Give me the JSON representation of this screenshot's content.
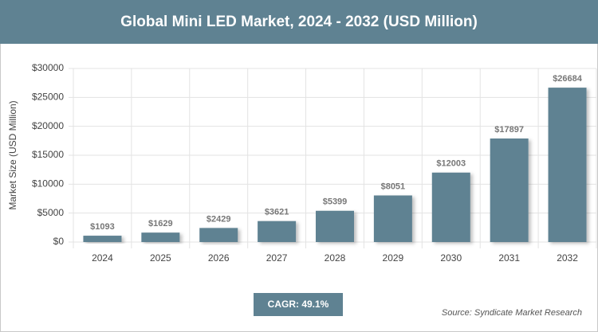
{
  "chart_data": {
    "type": "bar",
    "title": "Global Mini LED Market, 2024 - 2032 (USD Million)",
    "y_label": "Market Size (USD Million)",
    "categories": [
      "2024",
      "2025",
      "2026",
      "2027",
      "2028",
      "2029",
      "2030",
      "2031",
      "2032"
    ],
    "values": [
      1093,
      1629,
      2429,
      3621,
      5399,
      8051,
      12003,
      17897,
      26684
    ],
    "value_labels": [
      "$1093",
      "$1629",
      "$2429",
      "$3621",
      "$5399",
      "$8051",
      "$12003",
      "$17897",
      "$26684"
    ],
    "color": "#5f8292",
    "ylim": [
      0,
      30000
    ],
    "yticks": [
      {
        "value": 0,
        "label": "$0"
      },
      {
        "value": 5000,
        "label": "$5000"
      },
      {
        "value": 10000,
        "label": "$10000"
      },
      {
        "value": 15000,
        "label": "$15000"
      },
      {
        "value": 20000,
        "label": "$20000"
      },
      {
        "value": 25000,
        "label": "$25000"
      },
      {
        "value": 30000,
        "label": "$30000"
      }
    ],
    "grid": true,
    "cagr": "CAGR: 49.1%",
    "source": "Source: Syndicate Market Research"
  }
}
